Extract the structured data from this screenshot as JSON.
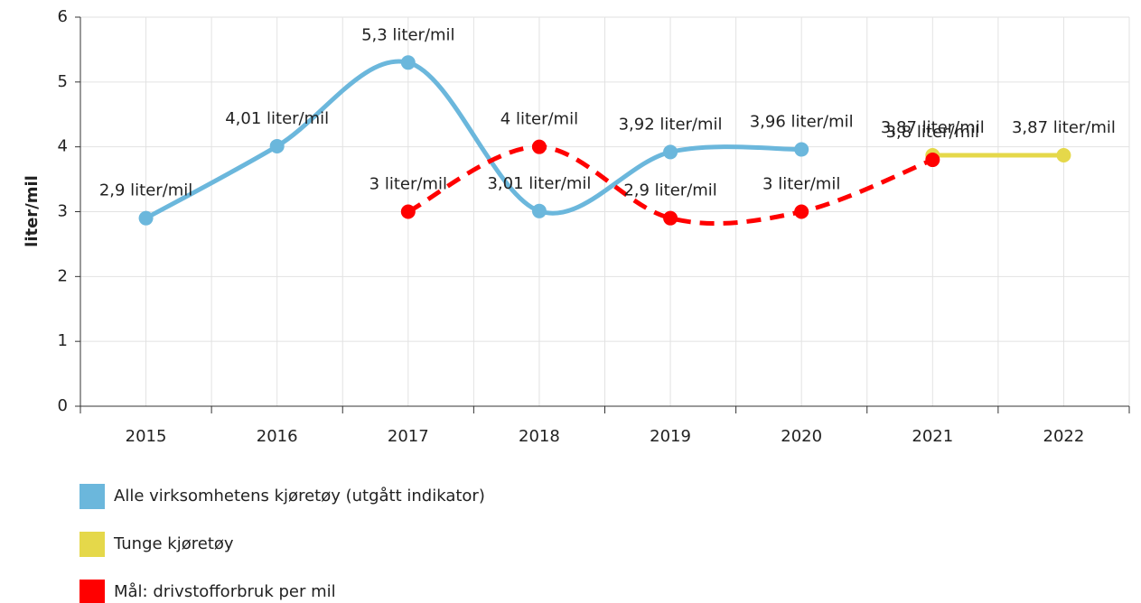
{
  "chart_data": {
    "type": "line",
    "y_label": "liter/mil",
    "categories": [
      "2015",
      "2016",
      "2017",
      "2018",
      "2019",
      "2020",
      "2021",
      "2022"
    ],
    "ylim": [
      0,
      6
    ],
    "yticks": [
      0,
      1,
      2,
      3,
      4,
      5,
      6
    ],
    "grid": true,
    "smooth": true,
    "series": [
      {
        "name": "Alle virksomhetens kjøretøy (utgått indikator)",
        "color": "#6bb7dc",
        "dashed": false,
        "values": [
          2.9,
          4.01,
          5.3,
          3.01,
          3.92,
          3.96,
          null,
          null
        ],
        "value_labels": [
          "2,9 liter/mil",
          "4,01 liter/mil",
          "5,3 liter/mil",
          "3,01 liter/mil",
          "3,92 liter/mil",
          "3,96 liter/mil",
          null,
          null
        ]
      },
      {
        "name": "Tunge kjøretøy",
        "color": "#e5d84a",
        "dashed": false,
        "values": [
          null,
          null,
          null,
          null,
          null,
          null,
          3.87,
          3.87
        ],
        "value_labels": [
          null,
          null,
          null,
          null,
          null,
          null,
          "3,87 liter/mil",
          "3,87 liter/mil"
        ]
      },
      {
        "name": "Mål: drivstofforbruk per mil",
        "color": "#ff0000",
        "dashed": true,
        "values": [
          null,
          null,
          3,
          4,
          2.9,
          3,
          3.8,
          null
        ],
        "value_labels": [
          null,
          null,
          "3 liter/mil",
          "4 liter/mil",
          "2,9 liter/mil",
          "3 liter/mil",
          "3,8 liter/mil",
          null
        ]
      }
    ]
  }
}
